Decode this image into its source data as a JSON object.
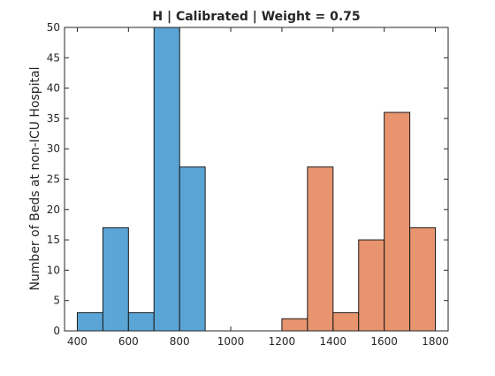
{
  "chart_data": {
    "type": "bar",
    "title": "H | Calibrated | Weight = 0.75",
    "xlabel": "",
    "ylabel": "Number of Beds at non-ICU Hospital",
    "xlim": [
      350,
      1850
    ],
    "ylim": [
      0,
      50
    ],
    "xticks": [
      400,
      600,
      800,
      1000,
      1200,
      1400,
      1600,
      1800
    ],
    "yticks": [
      0,
      5,
      10,
      15,
      20,
      25,
      30,
      35,
      40,
      45,
      50
    ],
    "bin_width": 100,
    "grid": false,
    "legend": "none",
    "series": [
      {
        "color": "#5aa5d6",
        "bins": [
          {
            "x0": 400,
            "x1": 500,
            "value": 3
          },
          {
            "x0": 500,
            "x1": 600,
            "value": 17
          },
          {
            "x0": 600,
            "x1": 700,
            "value": 3
          },
          {
            "x0": 700,
            "x1": 800,
            "value": 50
          },
          {
            "x0": 800,
            "x1": 900,
            "value": 27
          }
        ]
      },
      {
        "color": "#e8946f",
        "bins": [
          {
            "x0": 1200,
            "x1": 1300,
            "value": 2
          },
          {
            "x0": 1300,
            "x1": 1400,
            "value": 27
          },
          {
            "x0": 1400,
            "x1": 1500,
            "value": 3
          },
          {
            "x0": 1500,
            "x1": 1600,
            "value": 15
          },
          {
            "x0": 1600,
            "x1": 1700,
            "value": 36
          },
          {
            "x0": 1700,
            "x1": 1800,
            "value": 17
          }
        ]
      }
    ]
  }
}
